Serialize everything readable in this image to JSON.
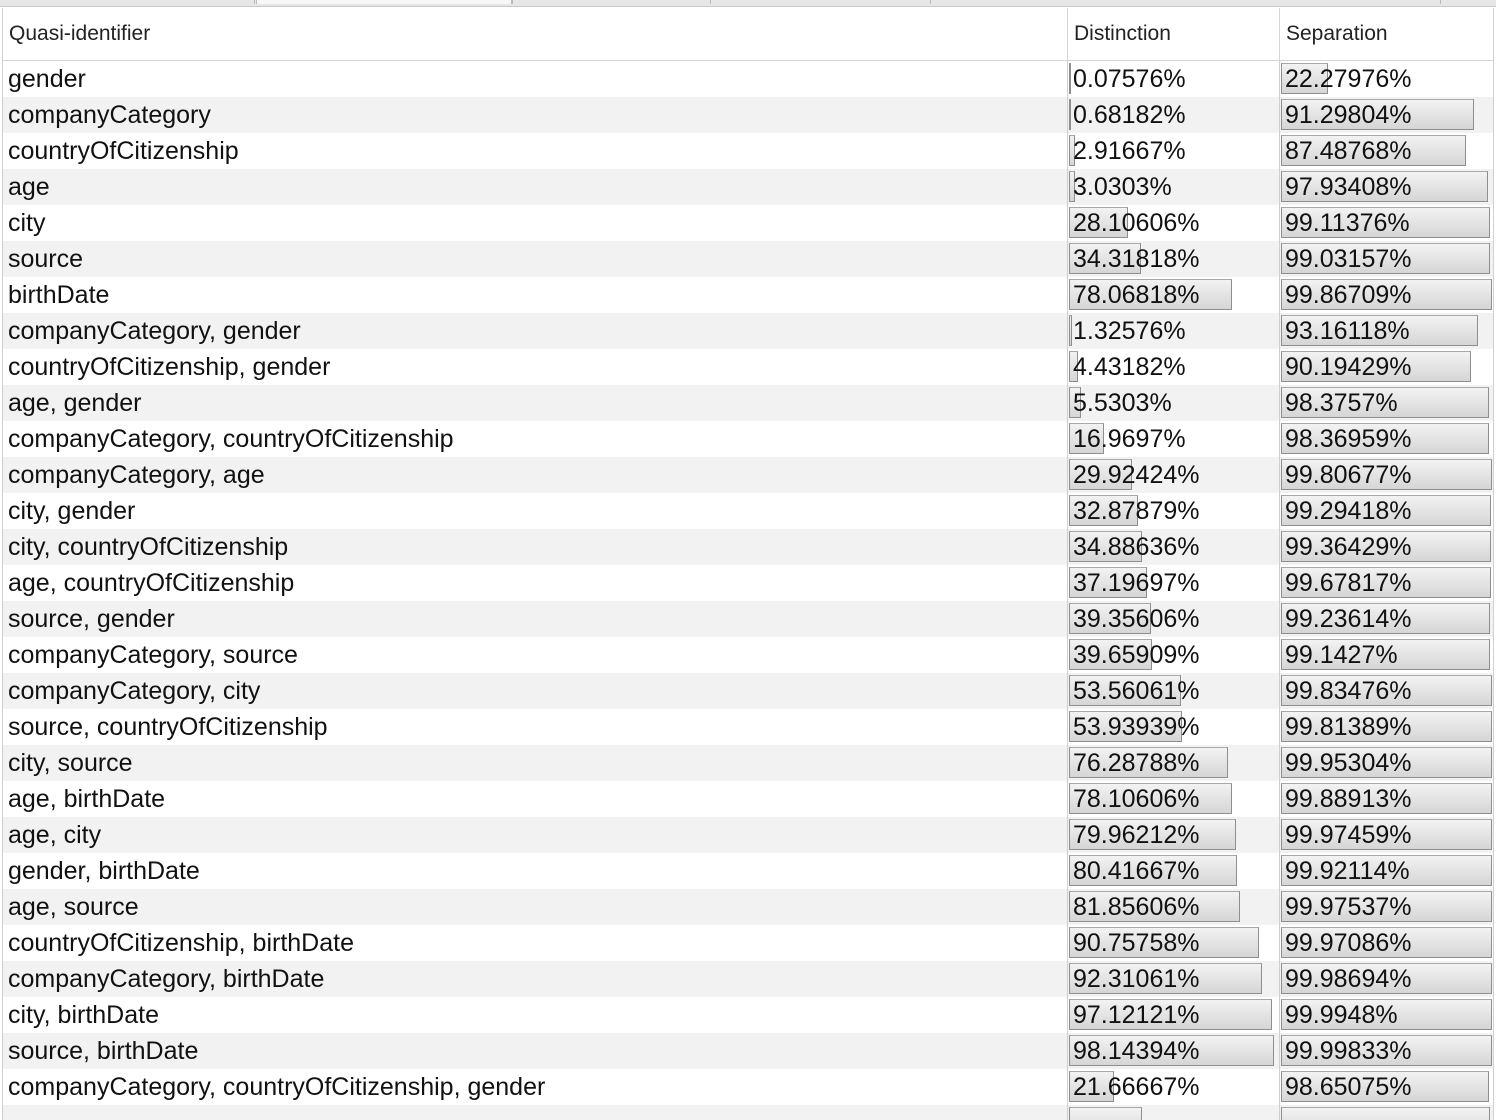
{
  "columns": {
    "qi": "Quasi-identifier",
    "distinction": "Distinction",
    "separation": "Separation"
  },
  "rows": [
    {
      "qi": "gender",
      "distinction": "0.07576%",
      "separation": "22.27976%",
      "d": 0.0007576,
      "s": 0.2227976
    },
    {
      "qi": "companyCategory",
      "distinction": "0.68182%",
      "separation": "91.29804%",
      "d": 0.0068182,
      "s": 0.9129804
    },
    {
      "qi": "countryOfCitizenship",
      "distinction": "2.91667%",
      "separation": "87.48768%",
      "d": 0.0291667,
      "s": 0.8748768
    },
    {
      "qi": "age",
      "distinction": "3.0303%",
      "separation": "97.93408%",
      "d": 0.030303,
      "s": 0.9793408
    },
    {
      "qi": "city",
      "distinction": "28.10606%",
      "separation": "99.11376%",
      "d": 0.2810606,
      "s": 0.9911376
    },
    {
      "qi": "source",
      "distinction": "34.31818%",
      "separation": "99.03157%",
      "d": 0.3431818,
      "s": 0.9903157
    },
    {
      "qi": "birthDate",
      "distinction": "78.06818%",
      "separation": "99.86709%",
      "d": 0.7806818,
      "s": 0.9986709
    },
    {
      "qi": "companyCategory, gender",
      "distinction": "1.32576%",
      "separation": "93.16118%",
      "d": 0.0132576,
      "s": 0.9316118
    },
    {
      "qi": "countryOfCitizenship, gender",
      "distinction": "4.43182%",
      "separation": "90.19429%",
      "d": 0.0443182,
      "s": 0.9019429
    },
    {
      "qi": "age, gender",
      "distinction": "5.5303%",
      "separation": "98.3757%",
      "d": 0.055303,
      "s": 0.983757
    },
    {
      "qi": "companyCategory, countryOfCitizenship",
      "distinction": "16.9697%",
      "separation": "98.36959%",
      "d": 0.169697,
      "s": 0.9836959
    },
    {
      "qi": "companyCategory, age",
      "distinction": "29.92424%",
      "separation": "99.80677%",
      "d": 0.2992424,
      "s": 0.9980677
    },
    {
      "qi": "city, gender",
      "distinction": "32.87879%",
      "separation": "99.29418%",
      "d": 0.3287879,
      "s": 0.9929418
    },
    {
      "qi": "city, countryOfCitizenship",
      "distinction": "34.88636%",
      "separation": "99.36429%",
      "d": 0.3488636,
      "s": 0.9936429
    },
    {
      "qi": "age, countryOfCitizenship",
      "distinction": "37.19697%",
      "separation": "99.67817%",
      "d": 0.3719697,
      "s": 0.9967817
    },
    {
      "qi": "source, gender",
      "distinction": "39.35606%",
      "separation": "99.23614%",
      "d": 0.3935606,
      "s": 0.9923614
    },
    {
      "qi": "companyCategory, source",
      "distinction": "39.65909%",
      "separation": "99.1427%",
      "d": 0.3965909,
      "s": 0.991427
    },
    {
      "qi": "companyCategory, city",
      "distinction": "53.56061%",
      "separation": "99.83476%",
      "d": 0.5356061,
      "s": 0.9983476
    },
    {
      "qi": "source, countryOfCitizenship",
      "distinction": "53.93939%",
      "separation": "99.81389%",
      "d": 0.5393939,
      "s": 0.9981389
    },
    {
      "qi": "city, source",
      "distinction": "76.28788%",
      "separation": "99.95304%",
      "d": 0.7628788,
      "s": 0.9995304
    },
    {
      "qi": "age, birthDate",
      "distinction": "78.10606%",
      "separation": "99.88913%",
      "d": 0.7810606,
      "s": 0.9988913
    },
    {
      "qi": "age, city",
      "distinction": "79.96212%",
      "separation": "99.97459%",
      "d": 0.7996212,
      "s": 0.9997459
    },
    {
      "qi": "gender, birthDate",
      "distinction": "80.41667%",
      "separation": "99.92114%",
      "d": 0.8041667,
      "s": 0.9992114
    },
    {
      "qi": "age, source",
      "distinction": "81.85606%",
      "separation": "99.97537%",
      "d": 0.8185606,
      "s": 0.9997537
    },
    {
      "qi": "countryOfCitizenship, birthDate",
      "distinction": "90.75758%",
      "separation": "99.97086%",
      "d": 0.9075758,
      "s": 0.9997086
    },
    {
      "qi": "companyCategory, birthDate",
      "distinction": "92.31061%",
      "separation": "99.98694%",
      "d": 0.9231061,
      "s": 0.9998694
    },
    {
      "qi": "city, birthDate",
      "distinction": "97.12121%",
      "separation": "99.9948%",
      "d": 0.9712121,
      "s": 0.999948
    },
    {
      "qi": "source, birthDate",
      "distinction": "98.14394%",
      "separation": "99.99833%",
      "d": 0.9814394,
      "s": 0.9999833
    },
    {
      "qi": "companyCategory, countryOfCitizenship, gender",
      "distinction": "21.66667%",
      "separation": "98.65075%",
      "d": 0.2166667,
      "s": 0.9865075
    },
    {
      "qi": "",
      "distinction": "",
      "separation": "",
      "d": 0.35,
      "s": 0.99
    }
  ]
}
